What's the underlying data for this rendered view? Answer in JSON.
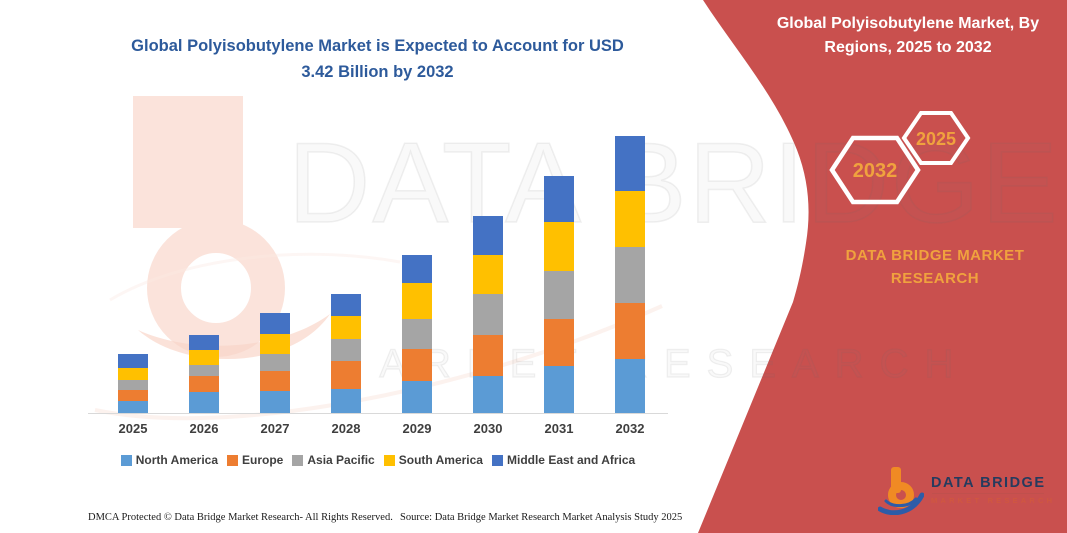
{
  "header": {
    "chart_title_line1": "Global Polyisobutylene Market is Expected to Account for USD",
    "chart_title_line2": "3.42 Billion by 2032"
  },
  "banner": {
    "title": "Global Polyisobutylene Market, By Regions, 2025 to 2032",
    "hexagon_year_left": "2032",
    "hexagon_year_right": "2025",
    "brand_line1": "DATA BRIDGE MARKET",
    "brand_line2": "RESEARCH",
    "background_color": "#C9504E",
    "accent_text_color": "#F0A23E"
  },
  "watermark": {
    "line1": "DATA BRIDGE",
    "line2": "MARKET RESEARCH"
  },
  "logo": {
    "name": "DATA BRIDGE",
    "tagline": "MARKET RESEARCH"
  },
  "footer": {
    "dmca_text": "DMCA Protected © Data Bridge Market Research-  All Rights Reserved.",
    "source_text": "Source: Data Bridge Market Research  Market Analysis Study 2025"
  },
  "chart_data": {
    "type": "bar",
    "stacked": true,
    "title": "Global Polyisobutylene Market is Expected to Account for USD 3.42 Billion by 2032",
    "unit": "USD Billion",
    "xlabel": "",
    "ylabel": "",
    "ylim": [
      0,
      3.5
    ],
    "grid": false,
    "legend_position": "bottom",
    "categories": [
      "2025",
      "2026",
      "2027",
      "2028",
      "2029",
      "2030",
      "2031",
      "2032"
    ],
    "series": [
      {
        "name": "North America",
        "color": "#5B9BD5",
        "values": [
          0.15,
          0.26,
          0.27,
          0.3,
          0.39,
          0.46,
          0.58,
          0.67
        ]
      },
      {
        "name": "Europe",
        "color": "#ED7D31",
        "values": [
          0.14,
          0.2,
          0.25,
          0.34,
          0.4,
          0.51,
          0.58,
          0.69
        ]
      },
      {
        "name": "Asia Pacific",
        "color": "#A5A5A5",
        "values": [
          0.12,
          0.14,
          0.21,
          0.27,
          0.37,
          0.51,
          0.59,
          0.69
        ]
      },
      {
        "name": "South America",
        "color": "#FFC000",
        "values": [
          0.15,
          0.19,
          0.25,
          0.29,
          0.44,
          0.48,
          0.6,
          0.69
        ]
      },
      {
        "name": "Middle East and Africa",
        "color": "#4472C4",
        "values": [
          0.17,
          0.19,
          0.26,
          0.27,
          0.34,
          0.48,
          0.57,
          0.68
        ]
      }
    ],
    "estimated_totals": [
      0.73,
      0.98,
      1.24,
      1.47,
      1.94,
      2.44,
      2.92,
      3.42
    ],
    "highlight_value": "USD 3.42 Billion by 2032"
  }
}
